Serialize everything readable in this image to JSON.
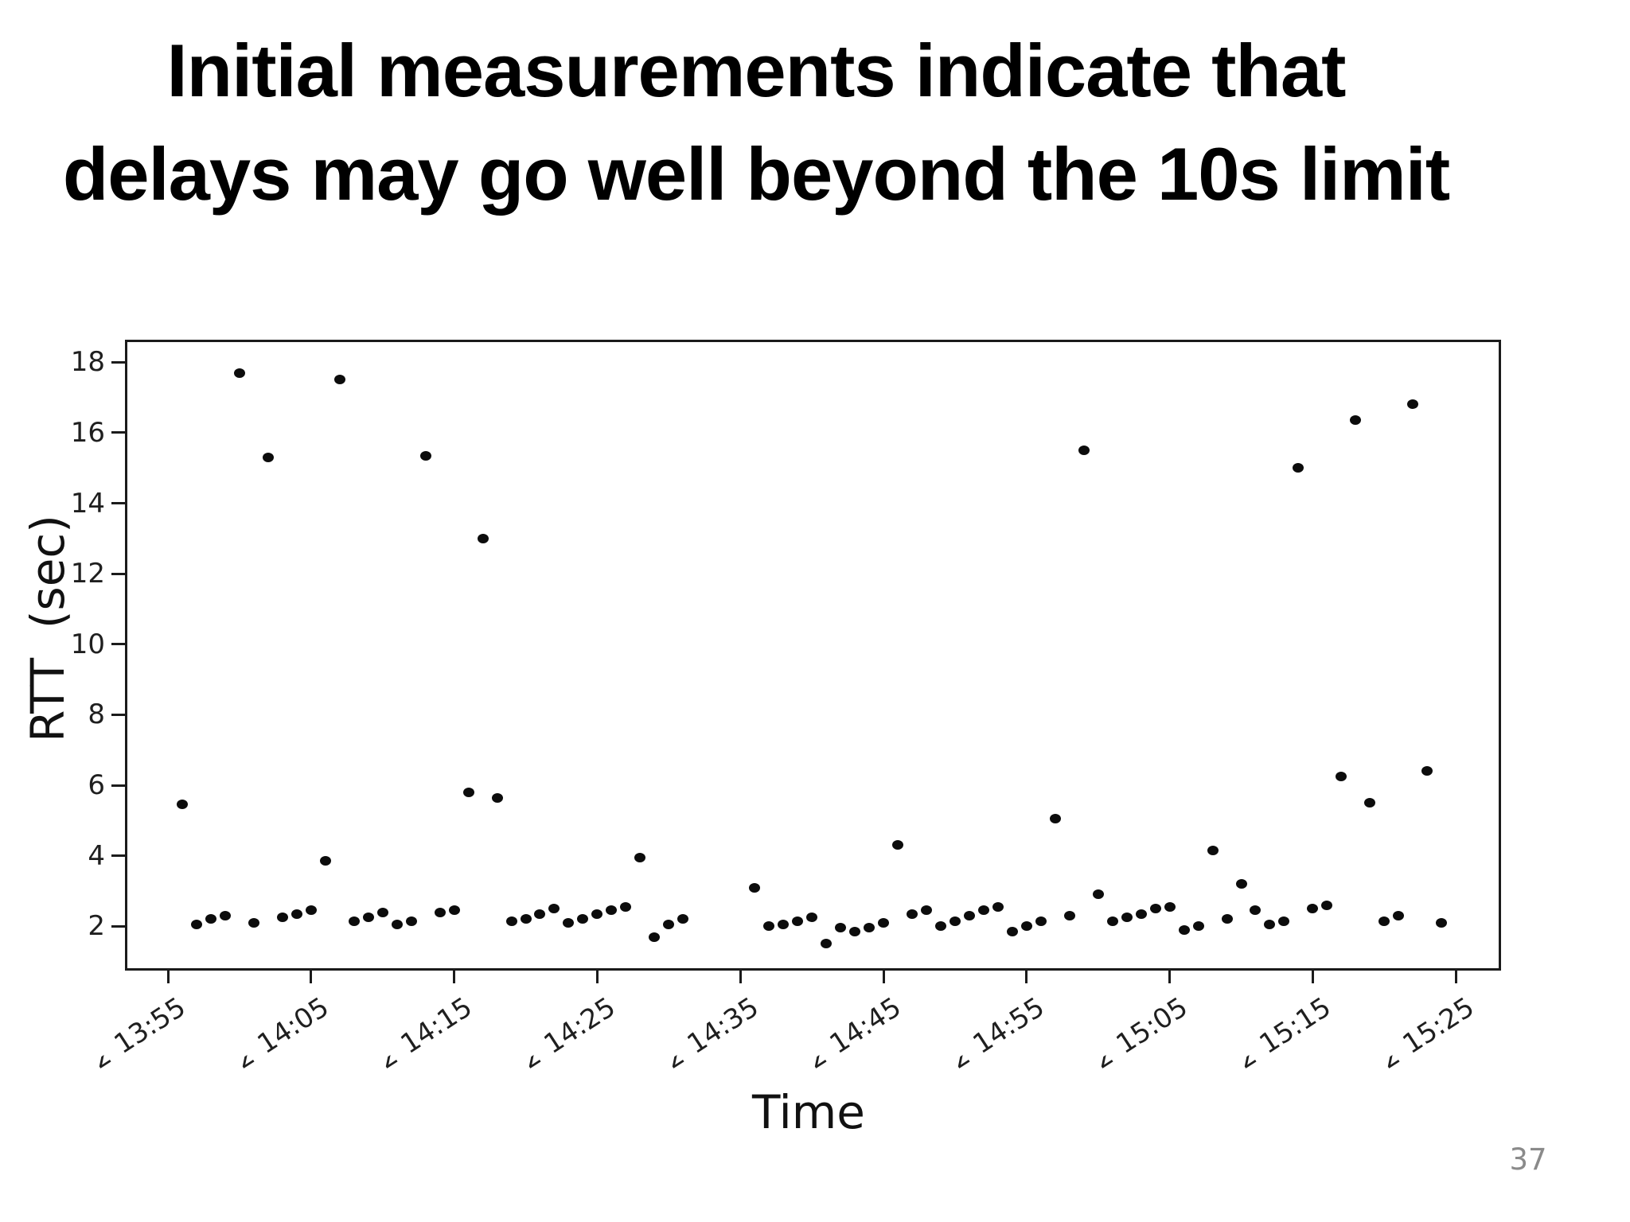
{
  "slide": {
    "title_line1": "Initial measurements indicate that",
    "title_line2": "delays may go well beyond the 10s limit",
    "page_number": "37"
  },
  "chart_data": {
    "type": "scatter",
    "title": "",
    "xlabel": "Time",
    "ylabel": "RTT  (sec)",
    "legend": "none",
    "grid": false,
    "marker_color": "#0c0c0c",
    "axis_color": "#1b1b1b",
    "ylim": [
      0.75,
      18.6
    ],
    "y_ticks": [
      2,
      4,
      6,
      8,
      10,
      12,
      14,
      16,
      18
    ],
    "x_tick_labels": [
      "13:55",
      "14:05",
      "14:15",
      "14:25",
      "14:35",
      "14:45",
      "14:55",
      "15:05",
      "15:15",
      "15:25"
    ],
    "x_tick_clipped_prefix": "2",
    "x_range_times": [
      "13:52",
      "15:28"
    ],
    "points": [
      [
        "13:56",
        5.45
      ],
      [
        "13:57",
        2.05
      ],
      [
        "13:58",
        2.2
      ],
      [
        "13:59",
        2.3
      ],
      [
        "14:00",
        17.7
      ],
      [
        "14:01",
        2.1
      ],
      [
        "14:02",
        15.3
      ],
      [
        "14:03",
        2.25
      ],
      [
        "14:04",
        2.35
      ],
      [
        "14:05",
        2.45
      ],
      [
        "14:06",
        3.85
      ],
      [
        "14:07",
        17.5
      ],
      [
        "14:08",
        2.15
      ],
      [
        "14:09",
        2.25
      ],
      [
        "14:10",
        2.4
      ],
      [
        "14:11",
        2.05
      ],
      [
        "14:12",
        2.15
      ],
      [
        "14:13",
        15.35
      ],
      [
        "14:14",
        2.4
      ],
      [
        "14:15",
        2.45
      ],
      [
        "14:16",
        5.8
      ],
      [
        "14:17",
        13.0
      ],
      [
        "14:18",
        5.65
      ],
      [
        "14:19",
        2.15
      ],
      [
        "14:20",
        2.2
      ],
      [
        "14:21",
        2.35
      ],
      [
        "14:22",
        2.5
      ],
      [
        "14:23",
        2.1
      ],
      [
        "14:24",
        2.2
      ],
      [
        "14:25",
        2.35
      ],
      [
        "14:26",
        2.45
      ],
      [
        "14:27",
        2.55
      ],
      [
        "14:28",
        3.95
      ],
      [
        "14:29",
        1.7
      ],
      [
        "14:30",
        2.05
      ],
      [
        "14:31",
        2.2
      ],
      [
        "14:36",
        3.1
      ],
      [
        "14:37",
        2.0
      ],
      [
        "14:38",
        2.05
      ],
      [
        "14:39",
        2.15
      ],
      [
        "14:40",
        2.25
      ],
      [
        "14:41",
        1.5
      ],
      [
        "14:42",
        1.95
      ],
      [
        "14:43",
        1.85
      ],
      [
        "14:44",
        1.95
      ],
      [
        "14:45",
        2.1
      ],
      [
        "14:46",
        4.3
      ],
      [
        "14:47",
        2.35
      ],
      [
        "14:48",
        2.45
      ],
      [
        "14:49",
        2.0
      ],
      [
        "14:50",
        2.15
      ],
      [
        "14:51",
        2.3
      ],
      [
        "14:52",
        2.45
      ],
      [
        "14:53",
        2.55
      ],
      [
        "14:54",
        1.85
      ],
      [
        "14:55",
        2.0
      ],
      [
        "14:56",
        2.15
      ],
      [
        "14:57",
        5.05
      ],
      [
        "14:58",
        2.3
      ],
      [
        "14:59",
        15.5
      ],
      [
        "15:00",
        2.9
      ],
      [
        "15:01",
        2.15
      ],
      [
        "15:02",
        2.25
      ],
      [
        "15:03",
        2.35
      ],
      [
        "15:04",
        2.5
      ],
      [
        "15:05",
        2.55
      ],
      [
        "15:06",
        1.9
      ],
      [
        "15:07",
        2.0
      ],
      [
        "15:08",
        4.15
      ],
      [
        "15:09",
        2.2
      ],
      [
        "15:10",
        3.2
      ],
      [
        "15:11",
        2.45
      ],
      [
        "15:12",
        2.05
      ],
      [
        "15:13",
        2.15
      ],
      [
        "15:14",
        15.0
      ],
      [
        "15:15",
        2.5
      ],
      [
        "15:16",
        2.6
      ],
      [
        "15:17",
        6.25
      ],
      [
        "15:18",
        16.35
      ],
      [
        "15:19",
        5.5
      ],
      [
        "15:20",
        2.15
      ],
      [
        "15:21",
        2.3
      ],
      [
        "15:22",
        16.8
      ],
      [
        "15:23",
        6.4
      ],
      [
        "15:24",
        2.1
      ]
    ]
  }
}
